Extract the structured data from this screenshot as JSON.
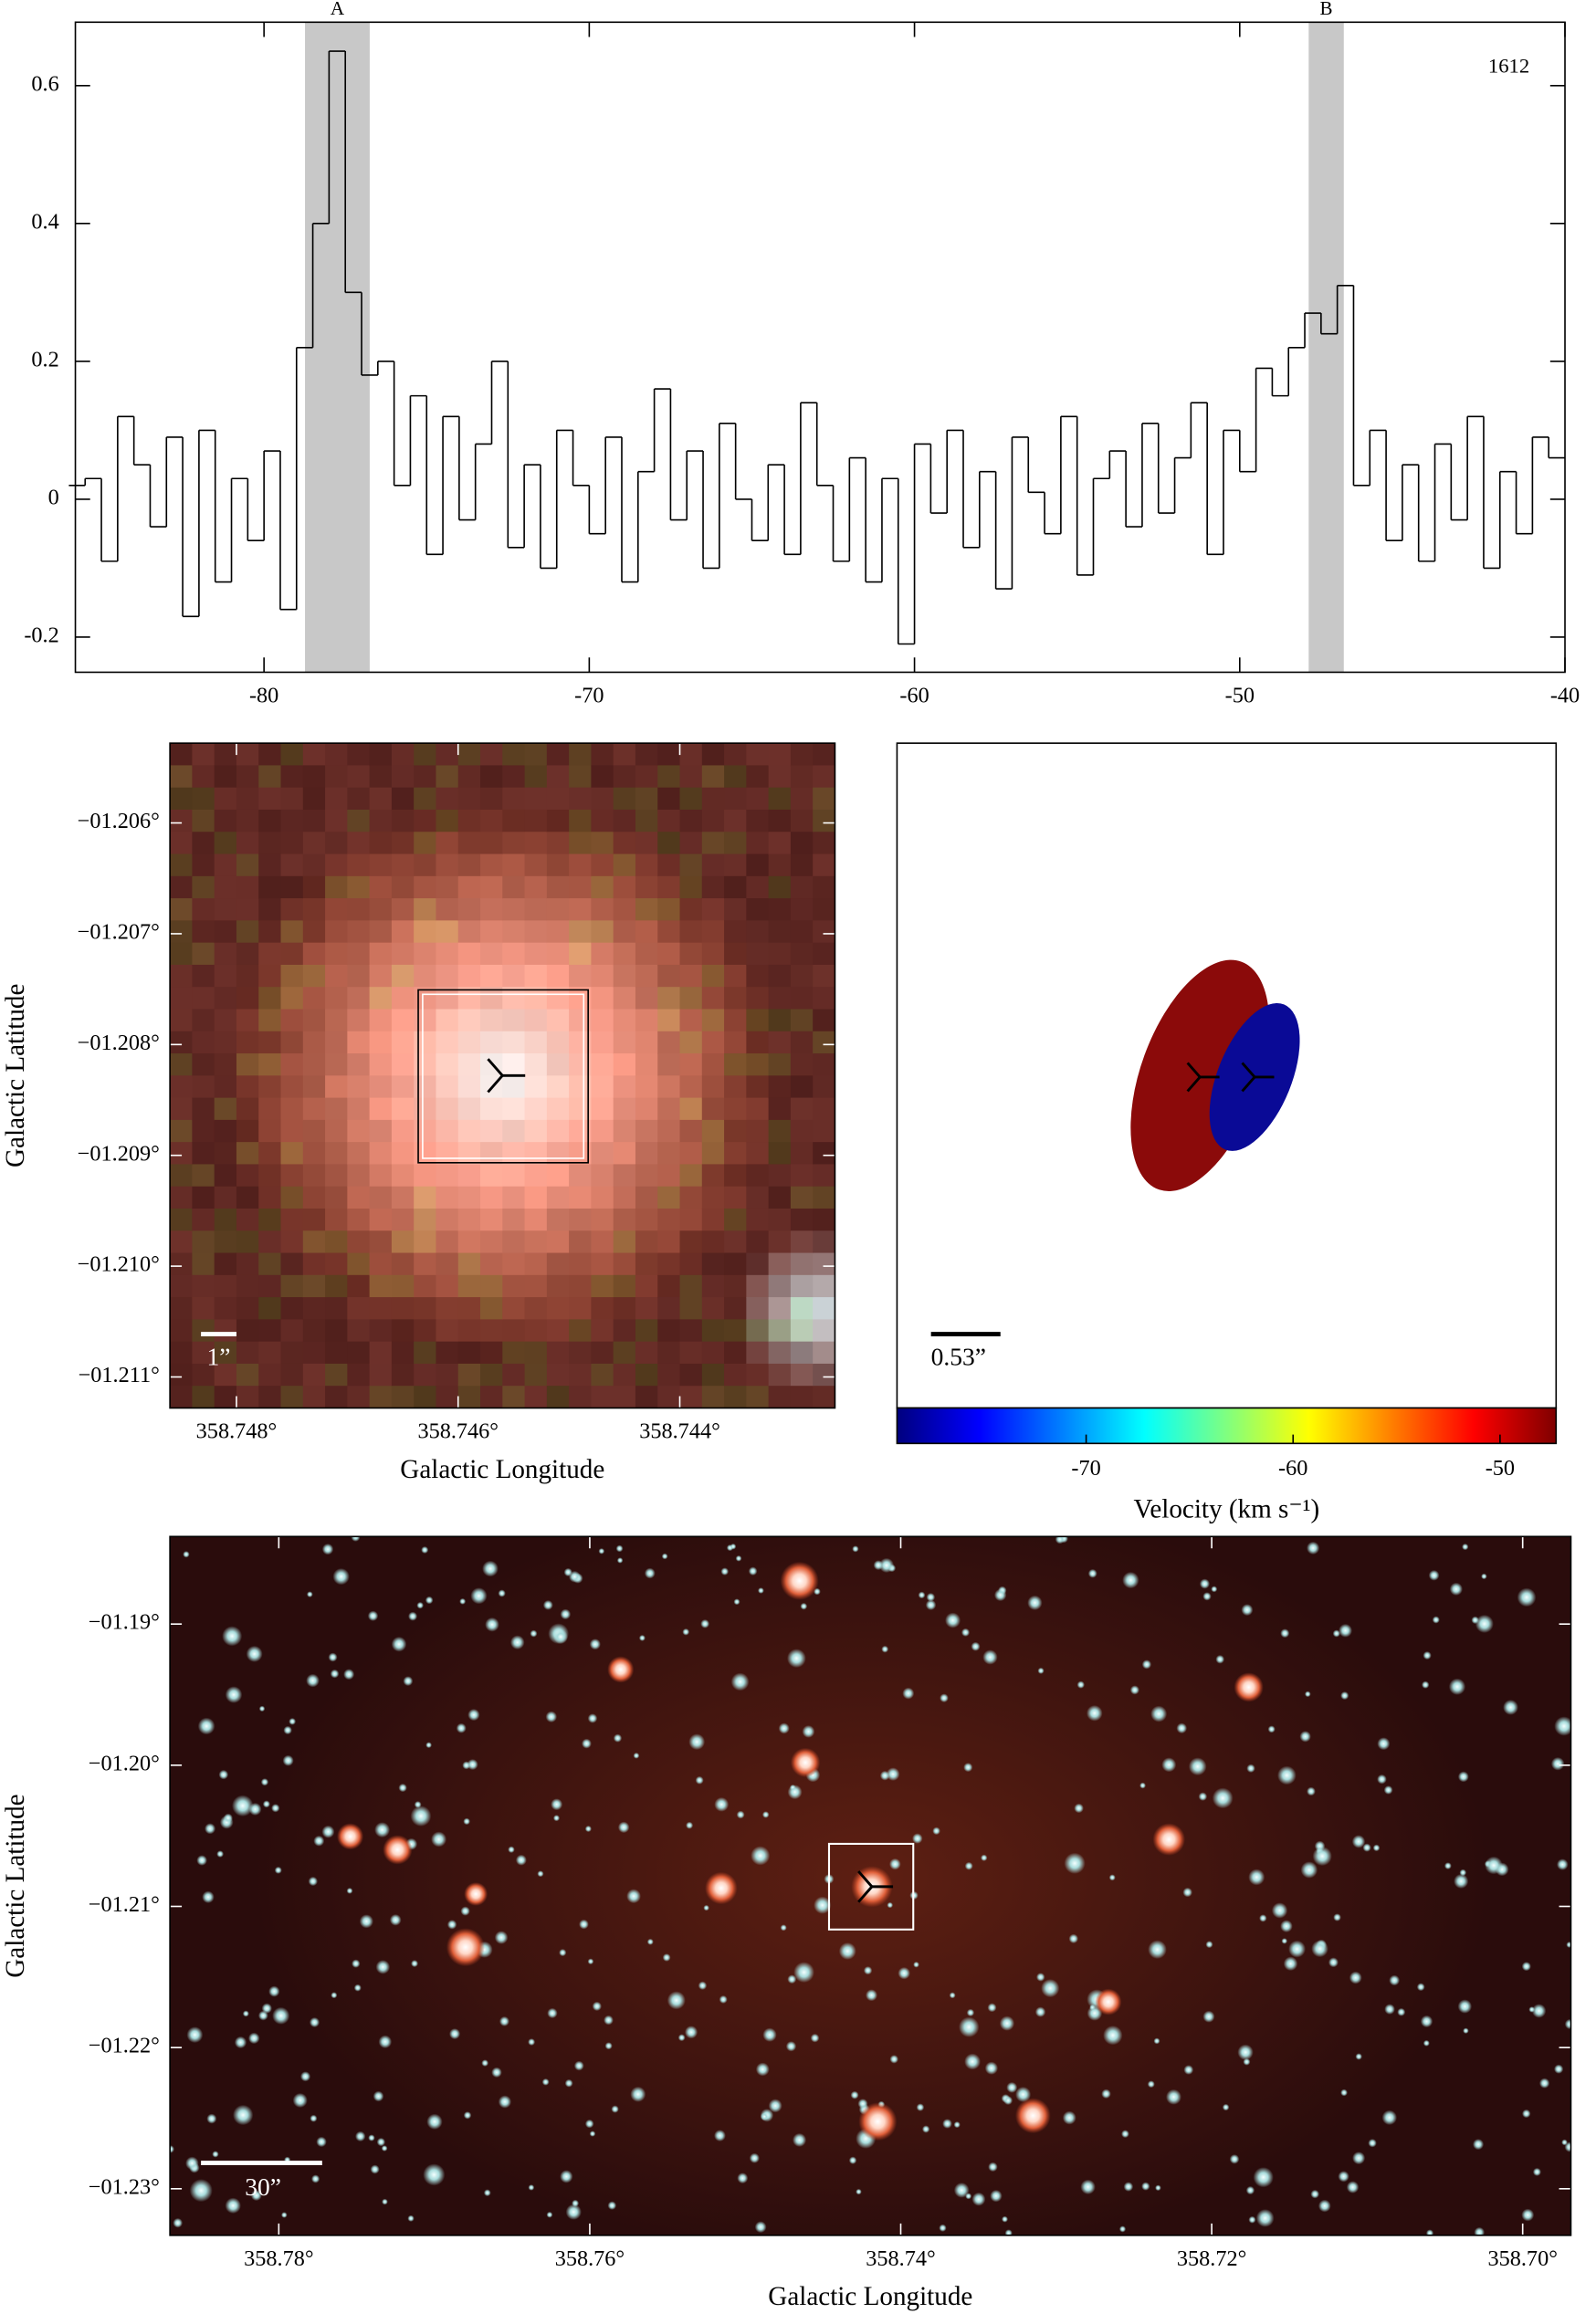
{
  "chart_data": [
    {
      "type": "line",
      "drawstyle": "steps",
      "color": "#000000",
      "annotation": "1612",
      "shaded_regions": [
        {
          "label": "A",
          "range": [
            -78.74,
            -76.75
          ]
        },
        {
          "label": "B",
          "range": [
            -47.88,
            -46.8
          ]
        }
      ],
      "shade_color": "#c8c8c8",
      "xlim": [
        -85.8,
        -40
      ],
      "ylim": [
        -0.251,
        0.692
      ],
      "xticks": [
        -80,
        -70,
        -60,
        -50,
        -40
      ],
      "yticks": [
        -0.2,
        0,
        0.2,
        0.4,
        0.6
      ],
      "x": [
        -85.75,
        -85.25,
        -84.75,
        -84.25,
        -83.75,
        -83.25,
        -82.75,
        -82.25,
        -81.75,
        -81.25,
        -80.75,
        -80.25,
        -79.75,
        -79.25,
        -78.75,
        -78.25,
        -77.75,
        -77.25,
        -76.75,
        -76.25,
        -75.75,
        -75.25,
        -74.75,
        -74.25,
        -73.75,
        -73.25,
        -72.75,
        -72.25,
        -71.75,
        -71.25,
        -70.75,
        -70.25,
        -69.75,
        -69.25,
        -68.75,
        -68.25,
        -67.75,
        -67.25,
        -66.75,
        -66.25,
        -65.75,
        -65.25,
        -64.75,
        -64.25,
        -63.75,
        -63.25,
        -62.75,
        -62.25,
        -61.75,
        -61.25,
        -60.75,
        -60.25,
        -59.75,
        -59.25,
        -58.75,
        -58.25,
        -57.75,
        -57.25,
        -56.75,
        -56.25,
        -55.75,
        -55.25,
        -54.75,
        -54.25,
        -53.75,
        -53.25,
        -52.75,
        -52.25,
        -51.75,
        -51.25,
        -50.75,
        -50.25,
        -49.75,
        -49.25,
        -48.75,
        -48.25,
        -47.75,
        -47.25,
        -46.75,
        -46.25,
        -45.75,
        -45.25,
        -44.75,
        -44.25,
        -43.75,
        -43.25,
        -42.75,
        -42.25,
        -41.75,
        -41.25,
        -40.75,
        -40.25
      ],
      "values": [
        0.02,
        0.03,
        -0.09,
        0.12,
        0.05,
        -0.04,
        0.09,
        -0.17,
        0.1,
        -0.12,
        0.03,
        -0.06,
        0.07,
        -0.16,
        0.22,
        0.4,
        0.65,
        0.3,
        0.18,
        0.2,
        0.02,
        0.15,
        -0.08,
        0.12,
        -0.03,
        0.08,
        0.2,
        -0.07,
        0.05,
        -0.1,
        0.1,
        0.02,
        -0.05,
        0.09,
        -0.12,
        0.04,
        0.16,
        -0.03,
        0.07,
        -0.1,
        0.11,
        0.0,
        -0.06,
        0.05,
        -0.08,
        0.14,
        0.02,
        -0.09,
        0.06,
        -0.12,
        0.03,
        -0.21,
        0.08,
        -0.02,
        0.1,
        -0.07,
        0.04,
        -0.13,
        0.09,
        0.01,
        -0.05,
        0.12,
        -0.11,
        0.03,
        0.07,
        -0.04,
        0.11,
        -0.02,
        0.06,
        0.14,
        -0.08,
        0.1,
        0.04,
        0.19,
        0.15,
        0.22,
        0.27,
        0.24,
        0.31,
        0.02,
        0.1,
        -0.06,
        0.05,
        -0.09,
        0.08,
        -0.03,
        0.12,
        -0.1,
        0.04,
        -0.05,
        0.09,
        0.06
      ]
    },
    {
      "type": "image",
      "xlabel": "Galactic Longitude",
      "ylabel": "Galactic Latitude",
      "scale_bar_label": "1”",
      "xlim": [
        358.7486,
        358.7426
      ],
      "ylim": [
        -1.21128,
        -1.20528
      ],
      "xticks": [
        {
          "value": 358.748,
          "label": "358.748°"
        },
        {
          "value": 358.746,
          "label": "358.746°"
        },
        {
          "value": 358.744,
          "label": "358.744°"
        }
      ],
      "yticks": [
        {
          "value": -1.206,
          "label": "−01.206°"
        },
        {
          "value": -1.207,
          "label": "−01.207°"
        },
        {
          "value": -1.208,
          "label": "−01.208°"
        },
        {
          "value": -1.209,
          "label": "−01.209°"
        },
        {
          "value": -1.21,
          "label": "−01.210°"
        },
        {
          "value": -1.211,
          "label": "−01.211°"
        }
      ]
    },
    {
      "type": "ellipse",
      "scale_bar_label": "0.53”",
      "ellipse_colors": [
        "#8b0a0a",
        "#0a0a96"
      ],
      "colormap": "jet",
      "clim": [
        -79.14,
        -47.29
      ],
      "cticks": [
        -70,
        -60,
        -50
      ],
      "colorbar_label": "Velocity (km s⁻¹)"
    },
    {
      "type": "image",
      "xlabel": "Galactic Longitude",
      "ylabel": "Galactic Latitude",
      "scale_bar_label": "30”",
      "xlim": [
        358.787,
        358.6969
      ],
      "ylim": [
        -1.2333,
        -1.1838
      ],
      "xticks": [
        {
          "value": 358.78,
          "label": "358.78°"
        },
        {
          "value": 358.76,
          "label": "358.76°"
        },
        {
          "value": 358.74,
          "label": "358.74°"
        },
        {
          "value": 358.72,
          "label": "358.72°"
        },
        {
          "value": 358.7,
          "label": "358.70°"
        }
      ],
      "yticks": [
        {
          "value": -1.19,
          "label": "−01.19°"
        },
        {
          "value": -1.2,
          "label": "−01.20°"
        },
        {
          "value": -1.21,
          "label": "−01.21°"
        },
        {
          "value": -1.22,
          "label": "−01.22°"
        },
        {
          "value": -1.23,
          "label": "−01.23°"
        }
      ]
    }
  ]
}
